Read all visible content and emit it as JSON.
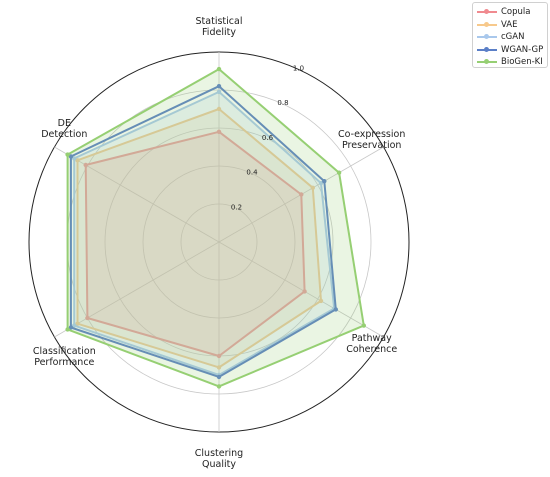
{
  "chart_data": {
    "type": "radar",
    "axes": [
      {
        "lines": [
          "Statistical",
          "Fidelity"
        ]
      },
      {
        "lines": [
          "Co-expression",
          "Preservation"
        ]
      },
      {
        "lines": [
          "Pathway",
          "Coherence"
        ]
      },
      {
        "lines": [
          "Clustering",
          "Quality"
        ]
      },
      {
        "lines": [
          "Classification",
          "Performance"
        ]
      },
      {
        "lines": [
          "DE",
          "Detection"
        ]
      }
    ],
    "rlim": [
      0,
      1.0
    ],
    "r_ticks": [
      "0.2",
      "0.4",
      "0.6",
      "0.8",
      "1.0"
    ],
    "r_tick_values": [
      0.2,
      0.4,
      0.6,
      0.8,
      1.0
    ],
    "grid": true,
    "legend_position": "top-right",
    "series": [
      {
        "name": "Copula",
        "values": [
          0.58,
          0.5,
          0.52,
          0.6,
          0.8,
          0.81
        ],
        "color": "#f08a8f",
        "fill": true
      },
      {
        "name": "VAE",
        "values": [
          0.7,
          0.57,
          0.62,
          0.66,
          0.86,
          0.86
        ],
        "color": "#f7c98c",
        "fill": true
      },
      {
        "name": "cGAN",
        "values": [
          0.79,
          0.62,
          0.7,
          0.7,
          0.88,
          0.88
        ],
        "color": "#a9c8ec",
        "fill": true
      },
      {
        "name": "WGAN-GP",
        "values": [
          0.82,
          0.64,
          0.71,
          0.71,
          0.9,
          0.9
        ],
        "color": "#5b7fc7",
        "fill": false
      },
      {
        "name": "BioGen-KI",
        "values": [
          0.91,
          0.73,
          0.88,
          0.76,
          0.92,
          0.92
        ],
        "color": "#96cf73",
        "fill": true
      }
    ]
  }
}
